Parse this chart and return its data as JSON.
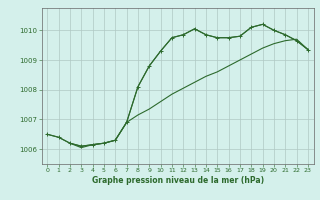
{
  "xlabel": "Graphe pression niveau de la mer (hPa)",
  "bg_color": "#d4f0eb",
  "grid_color": "#b0c8c4",
  "line_color": "#2d6a2d",
  "ylim": [
    1005.5,
    1010.75
  ],
  "yticks": [
    1006,
    1007,
    1008,
    1009,
    1010
  ],
  "xlim": [
    -0.5,
    23.5
  ],
  "x_ticks": [
    0,
    1,
    2,
    3,
    4,
    5,
    6,
    7,
    8,
    9,
    10,
    11,
    12,
    13,
    14,
    15,
    16,
    17,
    18,
    19,
    20,
    21,
    22,
    23
  ],
  "series1_x": [
    0,
    1,
    2,
    3,
    4,
    5,
    6,
    7,
    8,
    9,
    10,
    11,
    12,
    13,
    14,
    15,
    16,
    17,
    18,
    19,
    20,
    21,
    22,
    23
  ],
  "series1_y": [
    1006.5,
    1006.4,
    1006.2,
    1006.1,
    1006.15,
    1006.2,
    1006.3,
    1006.9,
    1008.1,
    1008.8,
    1009.3,
    1009.75,
    1009.85,
    1010.05,
    1009.85,
    1009.75,
    1009.75,
    1009.8,
    1010.1,
    1010.2,
    1010.0,
    1009.85,
    1009.65,
    1009.35
  ],
  "series2_x": [
    0,
    1,
    2,
    3,
    4,
    5,
    6,
    7,
    8,
    9,
    10,
    11,
    12,
    13,
    14,
    15,
    16,
    17,
    18,
    19,
    20,
    21,
    22,
    23
  ],
  "series2_y": [
    1006.5,
    1006.4,
    1006.2,
    1006.1,
    1006.15,
    1006.2,
    1006.3,
    1006.9,
    1007.15,
    1007.35,
    1007.6,
    1007.85,
    1008.05,
    1008.25,
    1008.45,
    1008.6,
    1008.8,
    1009.0,
    1009.2,
    1009.4,
    1009.55,
    1009.65,
    1009.7,
    1009.35
  ],
  "series3_x": [
    2,
    3,
    4,
    5,
    6,
    7,
    8,
    9,
    10,
    11,
    12,
    13,
    14,
    15,
    16,
    17,
    18,
    19,
    20,
    21,
    22,
    23
  ],
  "series3_y": [
    1006.2,
    1006.05,
    1006.15,
    1006.2,
    1006.3,
    1006.9,
    1008.1,
    1008.8,
    1009.3,
    1009.75,
    1009.85,
    1010.05,
    1009.85,
    1009.75,
    1009.75,
    1009.8,
    1010.1,
    1010.2,
    1010.0,
    1009.85,
    1009.65,
    1009.35
  ]
}
